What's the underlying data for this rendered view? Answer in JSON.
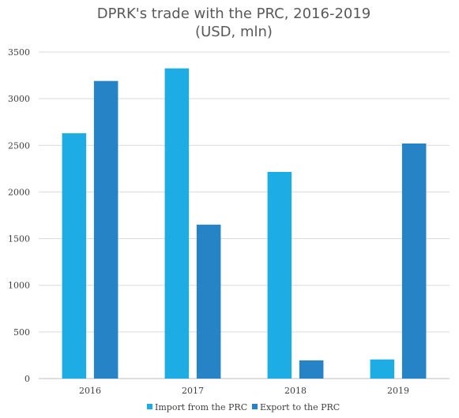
{
  "chart_data": {
    "type": "bar",
    "title": "DPRK's trade with the PRC, 2016-2019",
    "subtitle": "(USD, mln)",
    "categories": [
      "2016",
      "2017",
      "2018",
      "2019"
    ],
    "series": [
      {
        "name": "Import from the PRC",
        "values": [
          2630,
          3325,
          2215,
          205
        ],
        "color": "#1EACE4"
      },
      {
        "name": "Export to the PRC",
        "values": [
          3190,
          1650,
          195,
          2520
        ],
        "color": "#2683C6"
      }
    ],
    "ylim": [
      0,
      3500
    ],
    "yticks": [
      "0",
      "500",
      "1000",
      "1500",
      "2000",
      "2500",
      "3000",
      "3500"
    ],
    "grid": true,
    "legend_position": "bottom"
  }
}
